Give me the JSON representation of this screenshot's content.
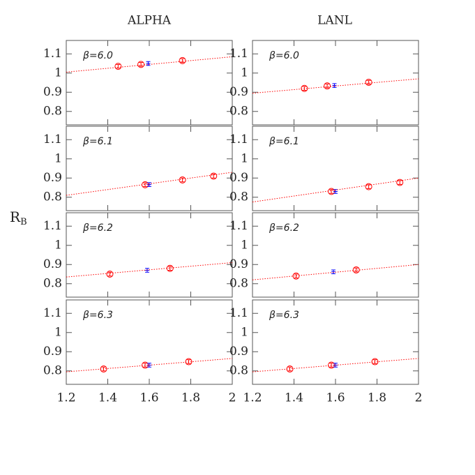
{
  "column_titles": [
    "ALPHA",
    "LANL"
  ],
  "ylabel": "R",
  "ylabel_sub": "B",
  "chart_data": [
    {
      "type": "scatter",
      "annotation": "β=6.0",
      "xlim": [
        1.2,
        2
      ],
      "xticks": [
        1.2,
        1.4,
        1.6,
        1.8,
        2
      ],
      "ylim": [
        0.73,
        1.17
      ],
      "yticks": [
        0.8,
        0.9,
        1,
        1.1
      ],
      "series": [
        {
          "color": "#ff0000",
          "marker": "circle",
          "x": [
            1.45,
            1.56,
            1.76
          ],
          "values": [
            1.035,
            1.045,
            1.065
          ],
          "errors": [
            0.01,
            0.01,
            0.01
          ]
        },
        {
          "color": "#0000ff",
          "marker": "bar",
          "x": [
            1.595
          ],
          "values": [
            1.05
          ],
          "errors": [
            0.01
          ]
        },
        {
          "color": "#ff0000",
          "marker": "dotted",
          "x": [
            1.2,
            2
          ],
          "values": [
            1.005,
            1.085
          ]
        }
      ]
    },
    {
      "type": "scatter",
      "annotation": "β=6.0",
      "xlim": [
        1.2,
        2
      ],
      "xticks": [
        1.2,
        1.4,
        1.6,
        1.8,
        2
      ],
      "ylim": [
        0.73,
        1.17
      ],
      "yticks": [
        0.8,
        0.9,
        1,
        1.1
      ],
      "series": [
        {
          "color": "#ff0000",
          "marker": "circle",
          "x": [
            1.45,
            1.56,
            1.76
          ],
          "values": [
            0.92,
            0.933,
            0.952
          ],
          "errors": [
            0.01,
            0.01,
            0.01
          ]
        },
        {
          "color": "#0000ff",
          "marker": "bar",
          "x": [
            1.595
          ],
          "values": [
            0.935
          ],
          "errors": [
            0.01
          ]
        },
        {
          "color": "#ff0000",
          "marker": "dotted",
          "x": [
            1.2,
            2
          ],
          "values": [
            0.895,
            0.97
          ]
        }
      ]
    },
    {
      "type": "scatter",
      "annotation": "β=6.1",
      "xlim": [
        1.2,
        2
      ],
      "xticks": [
        1.2,
        1.4,
        1.6,
        1.8,
        2
      ],
      "ylim": [
        0.73,
        1.17
      ],
      "yticks": [
        0.8,
        0.9,
        1,
        1.1
      ],
      "series": [
        {
          "color": "#ff0000",
          "marker": "circle",
          "x": [
            1.58,
            1.76,
            1.91
          ],
          "values": [
            0.865,
            0.89,
            0.91
          ],
          "errors": [
            0.01,
            0.01,
            0.01
          ]
        },
        {
          "color": "#0000ff",
          "marker": "bar",
          "x": [
            1.6
          ],
          "values": [
            0.866
          ],
          "errors": [
            0.01
          ]
        },
        {
          "color": "#ff0000",
          "marker": "dotted",
          "x": [
            1.2,
            2
          ],
          "values": [
            0.81,
            0.93
          ]
        }
      ]
    },
    {
      "type": "scatter",
      "annotation": "β=6.1",
      "xlim": [
        1.2,
        2
      ],
      "xticks": [
        1.2,
        1.4,
        1.6,
        1.8,
        2
      ],
      "ylim": [
        0.73,
        1.17
      ],
      "yticks": [
        0.8,
        0.9,
        1,
        1.1
      ],
      "series": [
        {
          "color": "#ff0000",
          "marker": "circle",
          "x": [
            1.58,
            1.76,
            1.91
          ],
          "values": [
            0.83,
            0.855,
            0.877
          ],
          "errors": [
            0.01,
            0.01,
            0.01
          ]
        },
        {
          "color": "#0000ff",
          "marker": "bar",
          "x": [
            1.6
          ],
          "values": [
            0.83
          ],
          "errors": [
            0.01
          ]
        },
        {
          "color": "#ff0000",
          "marker": "dotted",
          "x": [
            1.2,
            2
          ],
          "values": [
            0.775,
            0.9
          ]
        }
      ]
    },
    {
      "type": "scatter",
      "annotation": "β=6.2",
      "xlim": [
        1.2,
        2
      ],
      "xticks": [
        1.2,
        1.4,
        1.6,
        1.8,
        2
      ],
      "ylim": [
        0.73,
        1.17
      ],
      "yticks": [
        0.8,
        0.9,
        1,
        1.1
      ],
      "series": [
        {
          "color": "#ff0000",
          "marker": "circle",
          "x": [
            1.41,
            1.7
          ],
          "values": [
            0.85,
            0.88
          ],
          "errors": [
            0.01,
            0.01
          ]
        },
        {
          "color": "#0000ff",
          "marker": "bar",
          "x": [
            1.59
          ],
          "values": [
            0.87
          ],
          "errors": [
            0.01
          ]
        },
        {
          "color": "#ff0000",
          "marker": "dotted",
          "x": [
            1.2,
            2
          ],
          "values": [
            0.835,
            0.91
          ]
        }
      ]
    },
    {
      "type": "scatter",
      "annotation": "β=6.2",
      "xlim": [
        1.2,
        2
      ],
      "xticks": [
        1.2,
        1.4,
        1.6,
        1.8,
        2
      ],
      "ylim": [
        0.73,
        1.17
      ],
      "yticks": [
        0.8,
        0.9,
        1,
        1.1
      ],
      "series": [
        {
          "color": "#ff0000",
          "marker": "circle",
          "x": [
            1.41,
            1.7
          ],
          "values": [
            0.84,
            0.872
          ],
          "errors": [
            0.01,
            0.01
          ]
        },
        {
          "color": "#0000ff",
          "marker": "bar",
          "x": [
            1.59
          ],
          "values": [
            0.862
          ],
          "errors": [
            0.01
          ]
        },
        {
          "color": "#ff0000",
          "marker": "dotted",
          "x": [
            1.2,
            2
          ],
          "values": [
            0.82,
            0.9
          ]
        }
      ]
    },
    {
      "type": "scatter",
      "annotation": "β=6.3",
      "xlim": [
        1.2,
        2
      ],
      "xticks": [
        1.2,
        1.4,
        1.6,
        1.8,
        2
      ],
      "ylim": [
        0.73,
        1.17
      ],
      "yticks": [
        0.8,
        0.9,
        1,
        1.1
      ],
      "series": [
        {
          "color": "#ff0000",
          "marker": "circle",
          "x": [
            1.38,
            1.58,
            1.79
          ],
          "values": [
            0.81,
            0.83,
            0.848
          ],
          "errors": [
            0.01,
            0.01,
            0.01
          ]
        },
        {
          "color": "#0000ff",
          "marker": "bar",
          "x": [
            1.6
          ],
          "values": [
            0.83
          ],
          "errors": [
            0.01
          ]
        },
        {
          "color": "#ff0000",
          "marker": "dotted",
          "x": [
            1.2,
            2
          ],
          "values": [
            0.795,
            0.865
          ]
        }
      ]
    },
    {
      "type": "scatter",
      "annotation": "β=6.3",
      "xlim": [
        1.2,
        2
      ],
      "xticks": [
        1.2,
        1.4,
        1.6,
        1.8,
        2
      ],
      "ylim": [
        0.73,
        1.17
      ],
      "yticks": [
        0.8,
        0.9,
        1,
        1.1
      ],
      "series": [
        {
          "color": "#ff0000",
          "marker": "circle",
          "x": [
            1.38,
            1.58,
            1.79
          ],
          "values": [
            0.81,
            0.83,
            0.848
          ],
          "errors": [
            0.01,
            0.01,
            0.01
          ]
        },
        {
          "color": "#0000ff",
          "marker": "bar",
          "x": [
            1.6
          ],
          "values": [
            0.83
          ],
          "errors": [
            0.01
          ]
        },
        {
          "color": "#ff0000",
          "marker": "dotted",
          "x": [
            1.2,
            2
          ],
          "values": [
            0.795,
            0.865
          ]
        }
      ]
    }
  ]
}
